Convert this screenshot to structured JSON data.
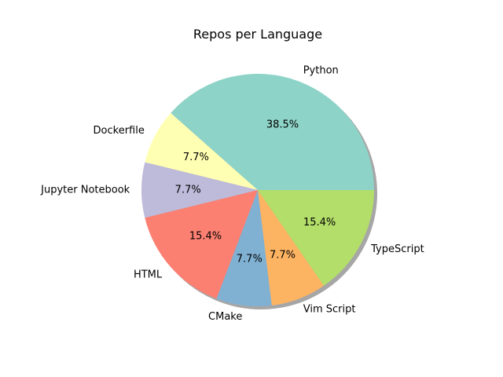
{
  "chart_data": {
    "type": "pie",
    "title": "Repos per Language",
    "shadow": true,
    "start_angle_deg": 0,
    "direction": "counterclockwise",
    "slices": [
      {
        "label": "Python",
        "value": 38.5,
        "pct_label": "38.5%",
        "color": "#8dd3c7"
      },
      {
        "label": "Dockerfile",
        "value": 7.7,
        "pct_label": "7.7%",
        "color": "#ffffb3"
      },
      {
        "label": "Jupyter Notebook",
        "value": 7.7,
        "pct_label": "7.7%",
        "color": "#bebada"
      },
      {
        "label": "HTML",
        "value": 15.4,
        "pct_label": "15.4%",
        "color": "#fb8072"
      },
      {
        "label": "CMake",
        "value": 7.7,
        "pct_label": "7.7%",
        "color": "#80b1d3"
      },
      {
        "label": "Vim Script",
        "value": 7.7,
        "pct_label": "7.7%",
        "color": "#fdb462"
      },
      {
        "label": "TypeScript",
        "value": 15.4,
        "pct_label": "15.4%",
        "color": "#b3de69"
      }
    ]
  }
}
